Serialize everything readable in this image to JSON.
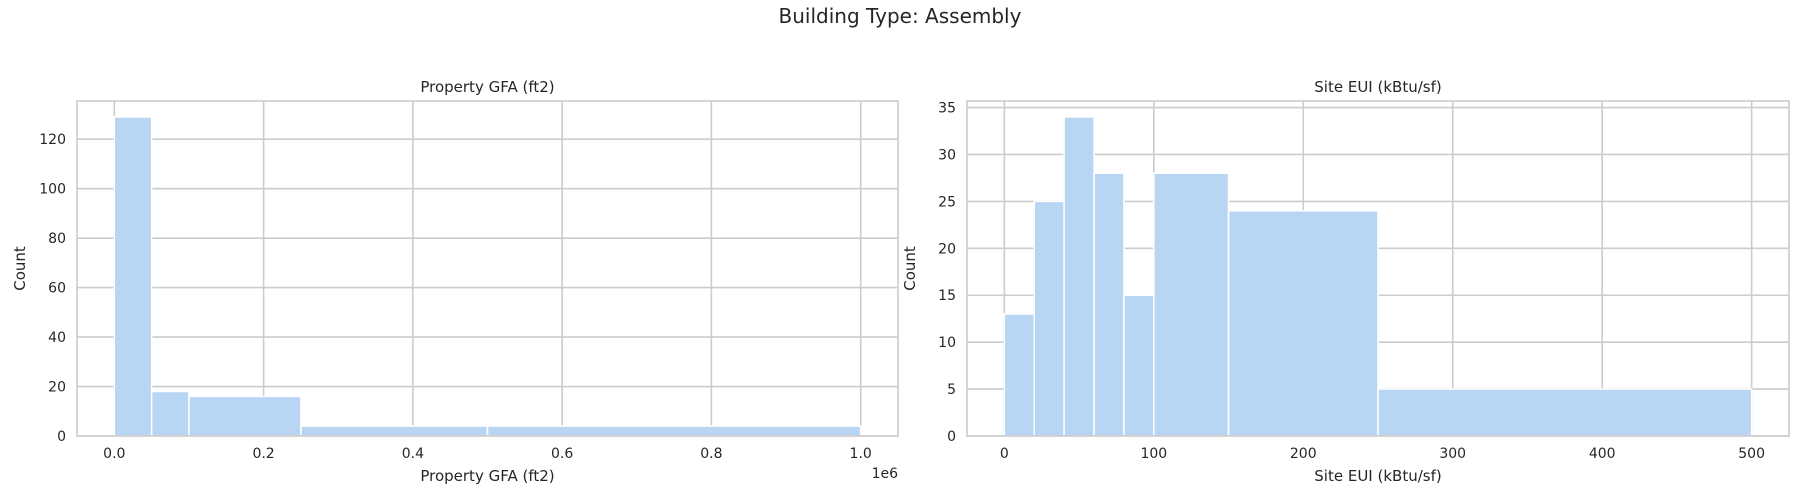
{
  "figure": {
    "suptitle": "Building Type: Assembly"
  },
  "chart_data": [
    {
      "type": "bar",
      "title": "Property GFA (ft2)",
      "xlabel": "Property GFA (ft2)",
      "ylabel": "Count",
      "offset_text": "1e6",
      "xlim": [
        -50000,
        1050000
      ],
      "ylim": [
        0,
        135.45
      ],
      "x_ticks": [
        0,
        200000,
        400000,
        600000,
        800000,
        1000000
      ],
      "x_tick_labels": [
        "0.0",
        "0.2",
        "0.4",
        "0.6",
        "0.8",
        "1.0"
      ],
      "y_ticks": [
        0,
        20,
        40,
        60,
        80,
        100,
        120
      ],
      "y_tick_labels": [
        "0",
        "20",
        "40",
        "60",
        "80",
        "100",
        "120"
      ],
      "bins": [
        {
          "x0": 0,
          "x1": 50000,
          "count": 129
        },
        {
          "x0": 50000,
          "x1": 100000,
          "count": 18
        },
        {
          "x0": 100000,
          "x1": 250000,
          "count": 16
        },
        {
          "x0": 250000,
          "x1": 500000,
          "count": 4
        },
        {
          "x0": 500000,
          "x1": 1000000,
          "count": 4
        }
      ],
      "grid": true,
      "bar_color": "#b8d6f4"
    },
    {
      "type": "bar",
      "title": "Site EUI (kBtu/sf)",
      "xlabel": "Site EUI (kBtu/sf)",
      "ylabel": "Count",
      "xlim": [
        -25,
        525
      ],
      "ylim": [
        0,
        35.7
      ],
      "x_ticks": [
        0,
        100,
        200,
        300,
        400,
        500
      ],
      "x_tick_labels": [
        "0",
        "100",
        "200",
        "300",
        "400",
        "500"
      ],
      "y_ticks": [
        0,
        5,
        10,
        15,
        20,
        25,
        30,
        35
      ],
      "y_tick_labels": [
        "0",
        "5",
        "10",
        "15",
        "20",
        "25",
        "30",
        "35"
      ],
      "bins": [
        {
          "x0": 0,
          "x1": 20,
          "count": 13
        },
        {
          "x0": 20,
          "x1": 40,
          "count": 25
        },
        {
          "x0": 40,
          "x1": 60,
          "count": 34
        },
        {
          "x0": 60,
          "x1": 80,
          "count": 28
        },
        {
          "x0": 80,
          "x1": 100,
          "count": 15
        },
        {
          "x0": 100,
          "x1": 150,
          "count": 28
        },
        {
          "x0": 150,
          "x1": 250,
          "count": 24
        },
        {
          "x0": 250,
          "x1": 500,
          "count": 5
        }
      ],
      "grid": true,
      "bar_color": "#b8d6f4"
    }
  ]
}
